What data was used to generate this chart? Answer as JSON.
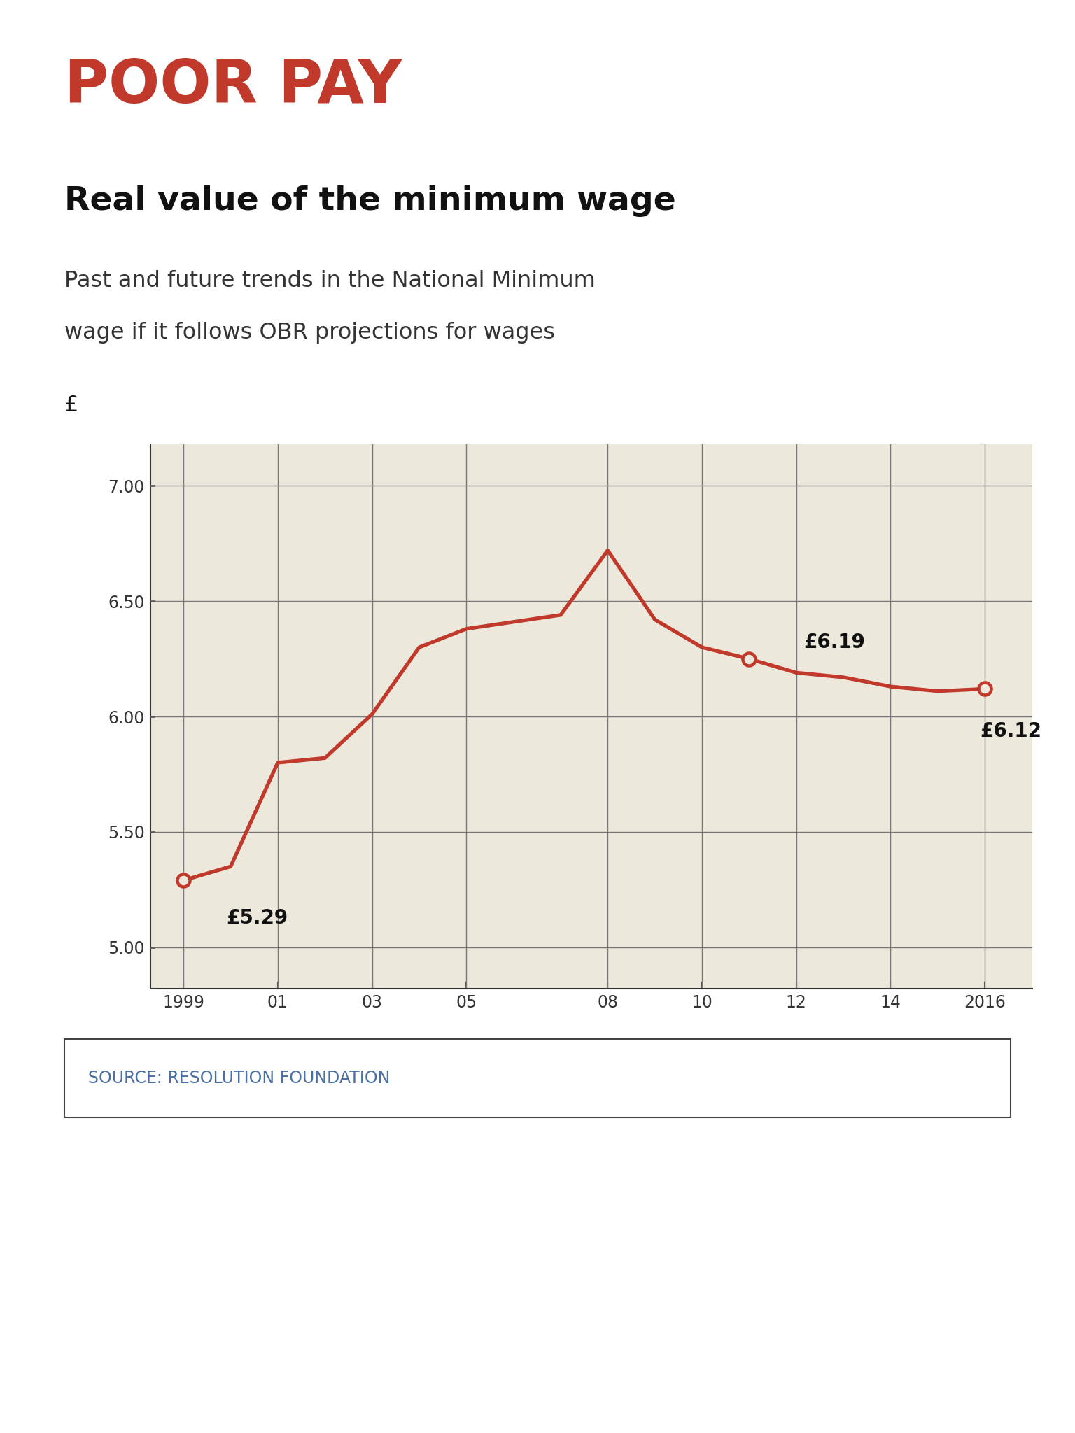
{
  "title_red": "POOR PAY",
  "title_black": "Real value of the minimum wage",
  "subtitle_line1": "Past and future trends in the National Minimum",
  "subtitle_line2": "wage if it follows OBR projections for wages",
  "ylabel": "£",
  "source": "SOURCE: RESOLUTION FOUNDATION",
  "years": [
    1999,
    2000,
    2001,
    2002,
    2003,
    2004,
    2005,
    2006,
    2007,
    2008,
    2009,
    2010,
    2011,
    2012,
    2013,
    2014,
    2015,
    2016
  ],
  "values": [
    5.29,
    5.35,
    5.8,
    5.82,
    6.01,
    6.3,
    6.38,
    6.41,
    6.44,
    6.72,
    6.42,
    6.3,
    6.25,
    6.19,
    6.17,
    6.13,
    6.11,
    6.12
  ],
  "open_circle_indices": [
    0,
    12,
    17
  ],
  "line_color": "#c0392b",
  "bg_color": "#ede8dc",
  "plot_bg": "#ffffff",
  "yticks": [
    5.0,
    5.5,
    6.0,
    6.5,
    7.0
  ],
  "ylim": [
    4.82,
    7.18
  ],
  "xtick_labels": [
    "1999",
    "01",
    "03",
    "05",
    "08",
    "10",
    "12",
    "14",
    "2016"
  ],
  "xtick_positions": [
    1999,
    2001,
    2003,
    2005,
    2008,
    2010,
    2012,
    2014,
    2016
  ],
  "grid_positions": [
    1999,
    2001,
    2003,
    2005,
    2008,
    2010,
    2012,
    2014,
    2016
  ],
  "xlim": [
    1998.3,
    2017.0
  ],
  "title_red_color": "#c0392b",
  "title_black_color": "#111111",
  "subtitle_color": "#333333",
  "source_color": "#4a6fa5",
  "annotation_fontsize": 20,
  "tick_fontsize": 17
}
